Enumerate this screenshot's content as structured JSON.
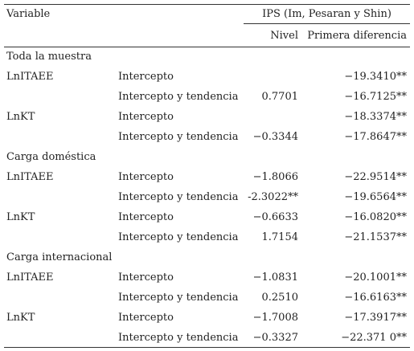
{
  "header": {
    "variable": "Variable",
    "ips": "IPS (Im, Pesaran y Shin)",
    "nivel": "Nivel",
    "primera_diferencia": "Primera diferencia"
  },
  "sections": [
    {
      "title": "Toda la muestra",
      "rows": [
        {
          "variable": "LnITAEE",
          "spec": "Intercepto",
          "nivel": "",
          "primera": "−19.3410**"
        },
        {
          "variable": "",
          "spec": "Intercepto y tendencia",
          "nivel": "0.7701",
          "primera": "−16.7125**"
        },
        {
          "variable": "LnKT",
          "spec": "Intercepto",
          "nivel": "",
          "primera": "−18.3374**"
        },
        {
          "variable": "",
          "spec": "Intercepto y tendencia",
          "nivel": "−0.3344",
          "primera": "−17.8647**"
        }
      ]
    },
    {
      "title": "Carga doméstica",
      "rows": [
        {
          "variable": "LnITAEE",
          "spec": "Intercepto",
          "nivel": "−1.8066",
          "primera": "−22.9514**"
        },
        {
          "variable": "",
          "spec": "Intercepto y tendencia",
          "nivel": "-2.3022**",
          "primera": "−19.6564**"
        },
        {
          "variable": "LnKT",
          "spec": "Intercepto",
          "nivel": "−0.6633",
          "primera": "−16.0820**"
        },
        {
          "variable": "",
          "spec": "Intercepto y tendencia",
          "nivel": "1.7154",
          "primera": "−21.1537**"
        }
      ]
    },
    {
      "title": "Carga internacional",
      "rows": [
        {
          "variable": "LnITAEE",
          "spec": "Intercepto",
          "nivel": "−1.0831",
          "primera": "−20.1001**"
        },
        {
          "variable": "",
          "spec": "Intercepto y tendencia",
          "nivel": "0.2510",
          "primera": "−16.6163**"
        },
        {
          "variable": "LnKT",
          "spec": "Intercepto",
          "nivel": "−1.7008",
          "primera": "−17.3917**"
        },
        {
          "variable": "",
          "spec": "Intercepto y tendencia",
          "nivel": "−0.3327",
          "primera": "−22.371 0**"
        }
      ]
    }
  ]
}
